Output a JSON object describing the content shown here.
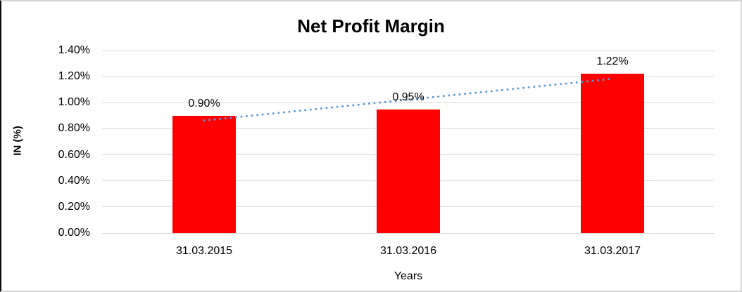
{
  "chart_data": {
    "type": "bar",
    "title": "Net Profit Margin",
    "xlabel": "Years",
    "ylabel": "IN (%)",
    "categories": [
      "31.03.2015",
      "31.03.2016",
      "31.03.2017"
    ],
    "series": [
      {
        "name": "Net Profit Margin",
        "values": [
          0.9,
          0.95,
          1.22
        ]
      }
    ],
    "data_labels": [
      "0.90%",
      "0.95%",
      "1.22%"
    ],
    "yticks": [
      {
        "value": 0.0,
        "label": "0.00%"
      },
      {
        "value": 0.2,
        "label": "0.20%"
      },
      {
        "value": 0.4,
        "label": "0.40%"
      },
      {
        "value": 0.6,
        "label": "0.60%"
      },
      {
        "value": 0.8,
        "label": "0.80%"
      },
      {
        "value": 1.0,
        "label": "1.00%"
      },
      {
        "value": 1.2,
        "label": "1.20%"
      },
      {
        "value": 1.4,
        "label": "1.40%"
      }
    ],
    "ylim": [
      0,
      1.4
    ],
    "grid": true,
    "legend": "none",
    "trendline": {
      "type": "linear",
      "style": "dotted",
      "color": "#5b9bd5"
    },
    "colors": {
      "bar": "#ff0000",
      "gridline": "#d9d9d9",
      "text": "#000000",
      "background": "#ffffff"
    }
  }
}
